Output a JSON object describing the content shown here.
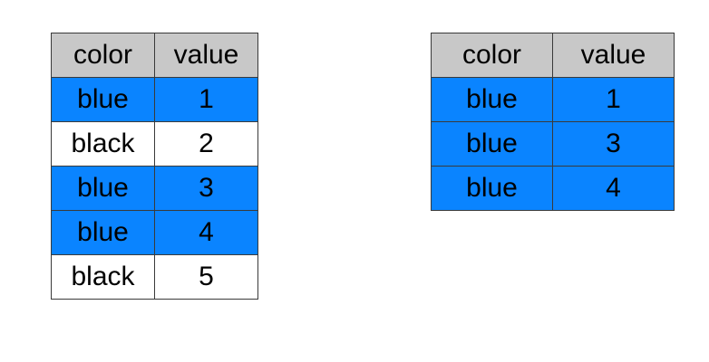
{
  "colors": {
    "header_bg": "#c8c8c8",
    "blue": "#0a84ff",
    "black_row_bg": "#ffffff",
    "border": "#3a3a3a"
  },
  "left_table": {
    "headers": [
      "color",
      "value"
    ],
    "rows": [
      {
        "color": "blue",
        "value": "1"
      },
      {
        "color": "black",
        "value": "2"
      },
      {
        "color": "blue",
        "value": "3"
      },
      {
        "color": "blue",
        "value": "4"
      },
      {
        "color": "black",
        "value": "5"
      }
    ]
  },
  "right_table": {
    "headers": [
      "color",
      "value"
    ],
    "rows": [
      {
        "color": "blue",
        "value": "1"
      },
      {
        "color": "blue",
        "value": "3"
      },
      {
        "color": "blue",
        "value": "4"
      }
    ]
  }
}
